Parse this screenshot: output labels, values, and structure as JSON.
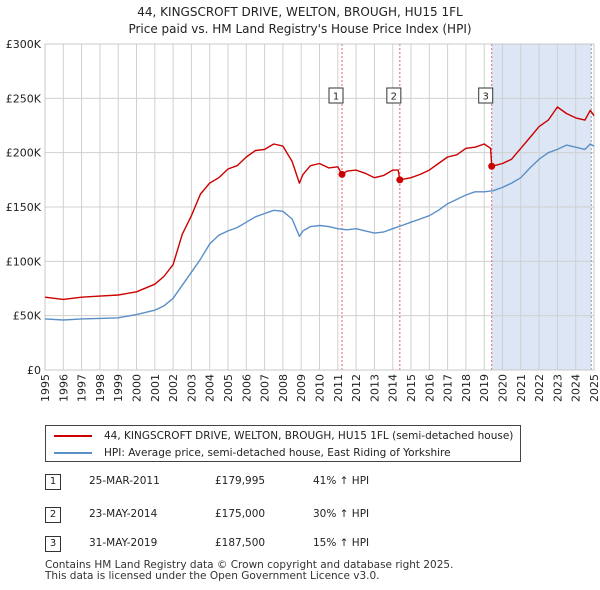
{
  "title": {
    "line1": "44, KINGSCROFT DRIVE, WELTON, BROUGH, HU15 1FL",
    "line2": "Price paid vs. HM Land Registry's House Price Index (HPI)"
  },
  "legend": {
    "property_label": "44, KINGSCROFT DRIVE, WELTON, BROUGH, HU15 1FL (semi-detached house)",
    "hpi_label": "HPI: Average price, semi-detached house, East Riding of Yorkshire"
  },
  "sales": [
    {
      "num": "1",
      "date": "25-MAR-2011",
      "price": "£179,995",
      "hpi": "41% ↑ HPI"
    },
    {
      "num": "2",
      "date": "23-MAY-2014",
      "price": "£175,000",
      "hpi": "30% ↑ HPI"
    },
    {
      "num": "3",
      "date": "31-MAY-2019",
      "price": "£187,500",
      "hpi": "15% ↑ HPI"
    }
  ],
  "footer": {
    "line1": "Contains HM Land Registry data © Crown copyright and database right 2025.",
    "line2": "This data is licensed under the Open Government Licence v3.0."
  },
  "colors": {
    "property": "#cc0000",
    "hpi": "#5b8fc7",
    "shade": "#dce6f5",
    "vline": "#e06666",
    "grid": "#d0d0d0"
  },
  "chart_data": {
    "type": "line",
    "xlim": [
      1995,
      2025
    ],
    "ylim": [
      0,
      300000
    ],
    "y_ticks": [
      0,
      50000,
      100000,
      150000,
      200000,
      250000,
      300000
    ],
    "y_tick_labels": [
      "£0",
      "£50K",
      "£100K",
      "£150K",
      "£200K",
      "£250K",
      "£300K"
    ],
    "x_ticks": [
      1995,
      1996,
      1997,
      1998,
      1999,
      2000,
      2001,
      2002,
      2003,
      2004,
      2005,
      2006,
      2007,
      2008,
      2009,
      2010,
      2011,
      2012,
      2013,
      2014,
      2015,
      2016,
      2017,
      2018,
      2019,
      2020,
      2021,
      2022,
      2023,
      2024,
      2025
    ],
    "x_tick_labels": [
      "1995",
      "1996",
      "1997",
      "1998",
      "1999",
      "2000",
      "2001",
      "2002",
      "2003",
      "2004",
      "2005",
      "2006",
      "2007",
      "2008",
      "2009",
      "2010",
      "2011",
      "2012",
      "2013",
      "2014",
      "2015",
      "2016",
      "2017",
      "2018",
      "2019",
      "2020",
      "2021",
      "2022",
      "2023",
      "2024",
      "2025"
    ],
    "sale_markers": [
      {
        "label": "1",
        "x": 2011.23,
        "y": 179995
      },
      {
        "label": "2",
        "x": 2014.39,
        "y": 175000
      },
      {
        "label": "3",
        "x": 2019.41,
        "y": 187500
      }
    ],
    "series": [
      {
        "name": "44, KINGSCROFT DRIVE, WELTON, BROUGH, HU15 1FL (semi-detached house)",
        "x": [
          1995.0,
          1996.0,
          1997.0,
          1998.0,
          1999.0,
          2000.0,
          2001.0,
          2001.5,
          2002.0,
          2002.5,
          2003.0,
          2003.5,
          2004.0,
          2004.5,
          2005.0,
          2005.5,
          2006.0,
          2006.5,
          2007.0,
          2007.5,
          2008.0,
          2008.5,
          2008.9,
          2009.1,
          2009.5,
          2010.0,
          2010.5,
          2011.0,
          2011.23,
          2011.5,
          2012.0,
          2012.5,
          2013.0,
          2013.5,
          2014.0,
          2014.3,
          2014.39,
          2015.0,
          2015.5,
          2016.0,
          2016.5,
          2017.0,
          2017.5,
          2018.0,
          2018.5,
          2019.0,
          2019.35,
          2019.41,
          2020.0,
          2020.5,
          2021.0,
          2021.5,
          2022.0,
          2022.5,
          2023.0,
          2023.5,
          2024.0,
          2024.5,
          2024.8,
          2025.0
        ],
        "values": [
          67000,
          65000,
          67000,
          68000,
          69000,
          72000,
          79000,
          86000,
          97000,
          125000,
          142000,
          162000,
          172000,
          177000,
          185000,
          188000,
          196000,
          202000,
          203000,
          208000,
          206000,
          192000,
          172000,
          180000,
          188000,
          190000,
          186000,
          187000,
          179995,
          183000,
          184000,
          181000,
          177000,
          179000,
          184000,
          184000,
          175000,
          177000,
          180000,
          184000,
          190000,
          196000,
          198000,
          204000,
          205000,
          208000,
          204000,
          187500,
          190000,
          194000,
          204000,
          214000,
          224000,
          230000,
          242000,
          236000,
          232000,
          230000,
          239000,
          234000
        ]
      },
      {
        "name": "HPI: Average price, semi-detached house, East Riding of Yorkshire",
        "x": [
          1995.0,
          1996.0,
          1997.0,
          1998.0,
          1999.0,
          2000.0,
          2001.0,
          2001.5,
          2002.0,
          2002.5,
          2003.0,
          2003.5,
          2004.0,
          2004.5,
          2005.0,
          2005.5,
          2006.0,
          2006.5,
          2007.0,
          2007.5,
          2008.0,
          2008.5,
          2008.9,
          2009.1,
          2009.5,
          2010.0,
          2010.5,
          2011.0,
          2011.5,
          2012.0,
          2012.5,
          2013.0,
          2013.5,
          2014.0,
          2014.5,
          2015.0,
          2015.5,
          2016.0,
          2016.5,
          2017.0,
          2017.5,
          2018.0,
          2018.5,
          2019.0,
          2019.5,
          2020.0,
          2020.5,
          2021.0,
          2021.5,
          2022.0,
          2022.5,
          2023.0,
          2023.5,
          2024.0,
          2024.5,
          2024.8,
          2025.0
        ],
        "values": [
          47000,
          46000,
          47000,
          47500,
          48000,
          51000,
          55000,
          59000,
          66000,
          78000,
          90000,
          102000,
          116000,
          124000,
          128000,
          131000,
          136000,
          141000,
          144000,
          147000,
          146000,
          139000,
          123000,
          128000,
          132000,
          133000,
          132000,
          130000,
          129000,
          130000,
          128000,
          126000,
          127000,
          130000,
          133000,
          136000,
          139000,
          142000,
          147000,
          153000,
          157000,
          161000,
          164000,
          164000,
          165000,
          168000,
          172000,
          177000,
          186000,
          194000,
          200000,
          203000,
          207000,
          205000,
          203000,
          208000,
          206000
        ]
      }
    ]
  }
}
